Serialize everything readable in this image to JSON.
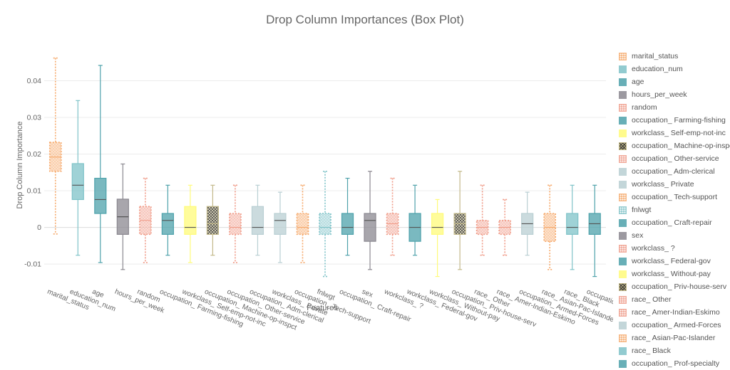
{
  "chart_data": {
    "type": "box",
    "title": "Drop Column Importances (Box Plot)",
    "xlabel": "Features",
    "ylabel": "Drop Column Importance",
    "ylim": [
      -0.016,
      0.05
    ],
    "yticks": [
      -0.01,
      0,
      0.01,
      0.02,
      0.03,
      0.04
    ],
    "ytick_labels": [
      "-0.01",
      "0",
      "0.01",
      "0.02",
      "0.03",
      "0.04"
    ],
    "grid": true,
    "legend_placement": "right",
    "series": [
      {
        "name": "marital_status",
        "color": "#f6a96b",
        "pattern": "dots",
        "min": -0.0018,
        "q1": 0.0153,
        "median": 0.0192,
        "q3": 0.0232,
        "max": 0.0462
      },
      {
        "name": "education_num",
        "color": "#7fc3c8",
        "pattern": "none",
        "min": -0.0076,
        "q1": 0.0076,
        "median": 0.0115,
        "q3": 0.0174,
        "max": 0.0346
      },
      {
        "name": "age",
        "color": "#4ea2ab",
        "pattern": "none",
        "min": -0.0096,
        "q1": 0.0038,
        "median": 0.0076,
        "q3": 0.0134,
        "max": 0.0442
      },
      {
        "name": "hours_per_week",
        "color": "#8b8890",
        "pattern": "none",
        "min": -0.0115,
        "q1": -0.0019,
        "median": 0.0029,
        "q3": 0.0077,
        "max": 0.0173
      },
      {
        "name": "random",
        "color": "#f09b88",
        "pattern": "dots",
        "min": -0.0096,
        "q1": -0.0019,
        "median": 0.0019,
        "q3": 0.0057,
        "max": 0.0134
      },
      {
        "name": "occupation_ Farming-fishing",
        "color": "#4ea2ab",
        "pattern": "none",
        "min": -0.0076,
        "q1": -0.0019,
        "median": 0.0019,
        "q3": 0.0038,
        "max": 0.0115
      },
      {
        "name": "workclass_ Self-emp-not-inc",
        "color": "#fffb7a",
        "pattern": "none",
        "min": -0.0096,
        "q1": -0.0019,
        "median": 0.0,
        "q3": 0.0057,
        "max": 0.0115
      },
      {
        "name": "occupation_ Machine-op-inspct",
        "color": "#c3b98a",
        "pattern": "cross",
        "min": -0.0076,
        "q1": -0.0019,
        "median": 0.001,
        "q3": 0.0057,
        "max": 0.0115
      },
      {
        "name": "occupation_ Other-service",
        "color": "#f09b88",
        "pattern": "dots",
        "min": -0.0096,
        "q1": -0.0019,
        "median": 0.0,
        "q3": 0.0038,
        "max": 0.0115
      },
      {
        "name": "occupation_ Adm-clerical",
        "color": "#b9cfd3",
        "pattern": "none",
        "min": -0.0076,
        "q1": -0.0019,
        "median": 0.0,
        "q3": 0.0057,
        "max": 0.0115
      },
      {
        "name": "workclass_ Private",
        "color": "#b9cfd3",
        "pattern": "none",
        "min": -0.0096,
        "q1": -0.0019,
        "median": 0.0019,
        "q3": 0.0038,
        "max": 0.0096
      },
      {
        "name": "occupation_ Tech-support",
        "color": "#f6a96b",
        "pattern": "dots",
        "min": -0.0096,
        "q1": -0.0019,
        "median": 0.0,
        "q3": 0.0038,
        "max": 0.0115
      },
      {
        "name": "fnlwgt",
        "color": "#7fc3c8",
        "pattern": "dots",
        "min": -0.0134,
        "q1": -0.0019,
        "median": 0.0,
        "q3": 0.0038,
        "max": 0.0153
      },
      {
        "name": "occupation_ Craft-repair",
        "color": "#4ea2ab",
        "pattern": "none",
        "min": -0.0076,
        "q1": -0.0019,
        "median": 0.0,
        "q3": 0.0038,
        "max": 0.0134
      },
      {
        "name": "sex",
        "color": "#8b8890",
        "pattern": "none",
        "min": -0.0115,
        "q1": -0.0038,
        "median": 0.0019,
        "q3": 0.0038,
        "max": 0.0153
      },
      {
        "name": "workclass_ ?",
        "color": "#f09b88",
        "pattern": "dots",
        "min": -0.0076,
        "q1": -0.0019,
        "median": 0.001,
        "q3": 0.0038,
        "max": 0.0134
      },
      {
        "name": "workclass_ Federal-gov",
        "color": "#4ea2ab",
        "pattern": "none",
        "min": -0.0076,
        "q1": -0.0038,
        "median": 0.0,
        "q3": 0.0038,
        "max": 0.0115
      },
      {
        "name": "workclass_ Without-pay",
        "color": "#fffb7a",
        "pattern": "none",
        "min": -0.0134,
        "q1": -0.0019,
        "median": 0.0,
        "q3": 0.0038,
        "max": 0.0076
      },
      {
        "name": "occupation_ Priv-house-serv",
        "color": "#c3b98a",
        "pattern": "cross",
        "min": -0.0115,
        "q1": -0.0019,
        "median": 0.001,
        "q3": 0.0038,
        "max": 0.0153
      },
      {
        "name": "race_ Other",
        "color": "#f09b88",
        "pattern": "dots",
        "min": -0.0076,
        "q1": -0.0019,
        "median": 0.0,
        "q3": 0.0019,
        "max": 0.0115
      },
      {
        "name": "race_ Amer-Indian-Eskimo",
        "color": "#f09b88",
        "pattern": "dots",
        "min": -0.0076,
        "q1": -0.0019,
        "median": 0.0,
        "q3": 0.0019,
        "max": 0.0076
      },
      {
        "name": "occupation_ Armed-Forces",
        "color": "#b9cfd3",
        "pattern": "none",
        "min": -0.0076,
        "q1": -0.0019,
        "median": 0.001,
        "q3": 0.0038,
        "max": 0.0096
      },
      {
        "name": "race_ Asian-Pac-Islander",
        "color": "#f6a96b",
        "pattern": "dots",
        "min": -0.0115,
        "q1": -0.0038,
        "median": 0.0,
        "q3": 0.0038,
        "max": 0.0115
      },
      {
        "name": "race_ Black",
        "color": "#7fc3c8",
        "pattern": "none",
        "min": -0.0115,
        "q1": -0.0019,
        "median": 0.0,
        "q3": 0.0038,
        "max": 0.0115
      },
      {
        "name": "occupation_ Prof-specialty",
        "color": "#4ea2ab",
        "pattern": "none",
        "min": -0.0134,
        "q1": -0.0019,
        "median": 0.001,
        "q3": 0.0038,
        "max": 0.0115
      }
    ]
  }
}
